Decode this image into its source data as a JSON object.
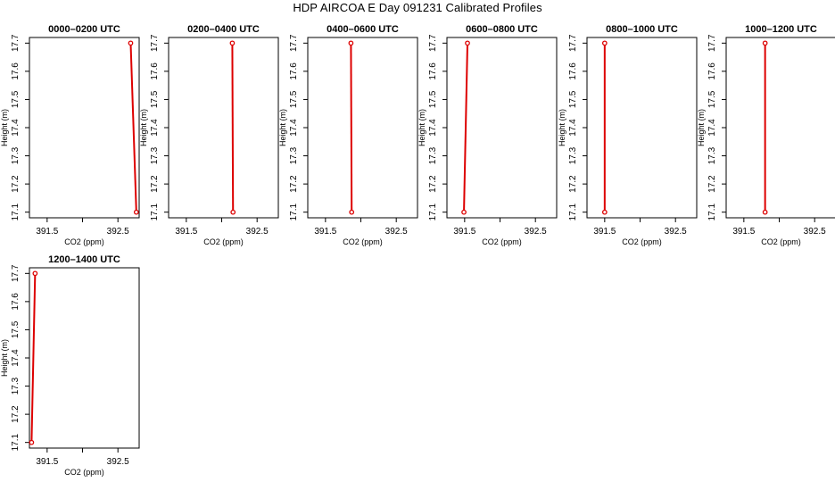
{
  "page": {
    "title": "HDP AIRCOA E  Day 091231  Calibrated Profiles"
  },
  "style": {
    "series_color": "#dd0000",
    "axis_color": "#000000"
  },
  "chart_data": [
    {
      "type": "line",
      "title": "0000–0200 UTC",
      "xlabel": "CO2 (ppm)",
      "ylabel": "Height (m)",
      "xlim": [
        391.25,
        392.8
      ],
      "ylim": [
        17.08,
        17.72
      ],
      "xticks": [
        391.5,
        392.0,
        392.5
      ],
      "xtick_labels": [
        "391.5",
        "",
        "392.5"
      ],
      "yticks": [
        17.1,
        17.2,
        17.3,
        17.4,
        17.5,
        17.6,
        17.7
      ],
      "ytick_labels": [
        "17.1",
        "17.2",
        "17.3",
        "17.4",
        "17.5",
        "17.6",
        "17.7"
      ],
      "series": [
        {
          "x": [
            392.68,
            392.76
          ],
          "y": [
            17.7,
            17.1
          ]
        }
      ]
    },
    {
      "type": "line",
      "title": "0200–0400 UTC",
      "xlabel": "CO2 (ppm)",
      "ylabel": "Height (m)",
      "xlim": [
        391.25,
        392.8
      ],
      "ylim": [
        17.08,
        17.72
      ],
      "xticks": [
        391.5,
        392.0,
        392.5
      ],
      "xtick_labels": [
        "391.5",
        "",
        "392.5"
      ],
      "yticks": [
        17.1,
        17.2,
        17.3,
        17.4,
        17.5,
        17.6,
        17.7
      ],
      "ytick_labels": [
        "17.1",
        "17.2",
        "17.3",
        "17.4",
        "17.5",
        "17.6",
        "17.7"
      ],
      "series": [
        {
          "x": [
            392.15,
            392.16
          ],
          "y": [
            17.7,
            17.1
          ]
        }
      ]
    },
    {
      "type": "line",
      "title": "0400–0600 UTC",
      "xlabel": "CO2 (ppm)",
      "ylabel": "Height (m)",
      "xlim": [
        391.25,
        392.8
      ],
      "ylim": [
        17.08,
        17.72
      ],
      "xticks": [
        391.5,
        392.0,
        392.5
      ],
      "xtick_labels": [
        "391.5",
        "",
        "392.5"
      ],
      "yticks": [
        17.1,
        17.2,
        17.3,
        17.4,
        17.5,
        17.6,
        17.7
      ],
      "ytick_labels": [
        "17.1",
        "17.2",
        "17.3",
        "17.4",
        "17.5",
        "17.6",
        "17.7"
      ],
      "series": [
        {
          "x": [
            391.86,
            391.87
          ],
          "y": [
            17.7,
            17.1
          ]
        }
      ]
    },
    {
      "type": "line",
      "title": "0600–0800 UTC",
      "xlabel": "CO2 (ppm)",
      "ylabel": "Height (m)",
      "xlim": [
        391.25,
        392.8
      ],
      "ylim": [
        17.08,
        17.72
      ],
      "xticks": [
        391.5,
        392.0,
        392.5
      ],
      "xtick_labels": [
        "391.5",
        "",
        "392.5"
      ],
      "yticks": [
        17.1,
        17.2,
        17.3,
        17.4,
        17.5,
        17.6,
        17.7
      ],
      "ytick_labels": [
        "17.1",
        "17.2",
        "17.3",
        "17.4",
        "17.5",
        "17.6",
        "17.7"
      ],
      "series": [
        {
          "x": [
            391.54,
            391.49
          ],
          "y": [
            17.7,
            17.1
          ]
        }
      ]
    },
    {
      "type": "line",
      "title": "0800–1000 UTC",
      "xlabel": "CO2 (ppm)",
      "ylabel": "Height (m)",
      "xlim": [
        391.25,
        392.8
      ],
      "ylim": [
        17.08,
        17.72
      ],
      "xticks": [
        391.5,
        392.0,
        392.5
      ],
      "xtick_labels": [
        "391.5",
        "",
        "392.5"
      ],
      "yticks": [
        17.1,
        17.2,
        17.3,
        17.4,
        17.5,
        17.6,
        17.7
      ],
      "ytick_labels": [
        "17.1",
        "17.2",
        "17.3",
        "17.4",
        "17.5",
        "17.6",
        "17.7"
      ],
      "series": [
        {
          "x": [
            391.5,
            391.5
          ],
          "y": [
            17.7,
            17.1
          ]
        }
      ]
    },
    {
      "type": "line",
      "title": "1000–1200 UTC",
      "xlabel": "CO2 (ppm)",
      "ylabel": "Height (m)",
      "xlim": [
        391.25,
        392.8
      ],
      "ylim": [
        17.08,
        17.72
      ],
      "xticks": [
        391.5,
        392.0,
        392.5
      ],
      "xtick_labels": [
        "391.5",
        "",
        "392.5"
      ],
      "yticks": [
        17.1,
        17.2,
        17.3,
        17.4,
        17.5,
        17.6,
        17.7
      ],
      "ytick_labels": [
        "17.1",
        "17.2",
        "17.3",
        "17.4",
        "17.5",
        "17.6",
        "17.7"
      ],
      "series": [
        {
          "x": [
            391.8,
            391.8
          ],
          "y": [
            17.7,
            17.1
          ]
        }
      ]
    },
    {
      "type": "line",
      "title": "1200–1400 UTC",
      "xlabel": "CO2 (ppm)",
      "ylabel": "Height (m)",
      "xlim": [
        391.25,
        392.8
      ],
      "ylim": [
        17.08,
        17.72
      ],
      "xticks": [
        391.5,
        392.0,
        392.5
      ],
      "xtick_labels": [
        "391.5",
        "",
        "392.5"
      ],
      "yticks": [
        17.1,
        17.2,
        17.3,
        17.4,
        17.5,
        17.6,
        17.7
      ],
      "ytick_labels": [
        "17.1",
        "17.2",
        "17.3",
        "17.4",
        "17.5",
        "17.6",
        "17.7"
      ],
      "series": [
        {
          "x": [
            391.33,
            391.28
          ],
          "y": [
            17.7,
            17.1
          ]
        }
      ]
    }
  ]
}
